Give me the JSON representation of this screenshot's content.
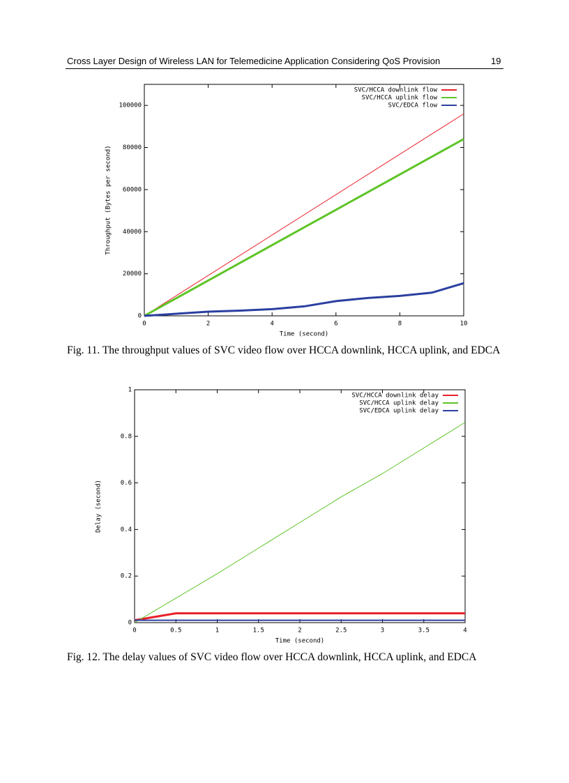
{
  "header": {
    "title": "Cross Layer Design of Wireless LAN for Telemedicine Application  Considering QoS Provision",
    "page": "19"
  },
  "chart_data": [
    {
      "type": "line",
      "xlabel": "Time (second)",
      "ylabel": "Throughput (Bytes per second)",
      "xlim": [
        0,
        10
      ],
      "ylim": [
        0,
        110000
      ],
      "xticks": [
        0,
        2,
        4,
        6,
        8,
        10
      ],
      "yticks": [
        0,
        20000,
        40000,
        60000,
        80000,
        100000
      ],
      "legend": "upper right",
      "x": [
        0,
        1,
        2,
        3,
        4,
        5,
        6,
        7,
        8,
        9,
        10
      ],
      "series": [
        {
          "name": "SVC/HCCA downlink flow",
          "color": "#e8202a",
          "values": [
            0,
            9600,
            19200,
            28800,
            38400,
            48000,
            57600,
            67200,
            76800,
            86400,
            96000
          ]
        },
        {
          "name": "SVC/HCCA uplink flow",
          "color": "#5ec426",
          "values": [
            0,
            8400,
            16800,
            25200,
            33600,
            42000,
            50400,
            58800,
            67200,
            75600,
            84000
          ]
        },
        {
          "name": "SVC/EDCA flow",
          "color": "#2b3fa0",
          "values": [
            0,
            1000,
            2000,
            2500,
            3200,
            4500,
            7000,
            8500,
            9500,
            11000,
            15500
          ]
        }
      ]
    },
    {
      "type": "line",
      "xlabel": "Time (second)",
      "ylabel": "Delay (second)",
      "xlim": [
        0,
        4
      ],
      "ylim": [
        0,
        1
      ],
      "xticks": [
        0,
        0.5,
        1,
        1.5,
        2,
        2.5,
        3,
        3.5,
        4
      ],
      "yticks": [
        0,
        0.2,
        0.4,
        0.6,
        0.8,
        1
      ],
      "legend": "upper right",
      "x": [
        0,
        0.5,
        1,
        1.5,
        2,
        2.5,
        3,
        3.5,
        4
      ],
      "series": [
        {
          "name": "SVC/HCCA downlink delay",
          "color": "#e8202a",
          "values": [
            0.01,
            0.04,
            0.04,
            0.04,
            0.04,
            0.04,
            0.04,
            0.04,
            0.04
          ]
        },
        {
          "name": "SVC/HCCA uplink delay",
          "color": "#5ec426",
          "values": [
            0,
            0.105,
            0.21,
            0.32,
            0.43,
            0.54,
            0.64,
            0.75,
            0.86
          ]
        },
        {
          "name": "SVC/EDCA uplink delay",
          "color": "#2b3fa0",
          "values": [
            0.01,
            0.01,
            0.01,
            0.01,
            0.01,
            0.01,
            0.01,
            0.01,
            0.01
          ]
        }
      ]
    }
  ],
  "captions": [
    "Fig. 11. The throughput values of SVC video flow over HCCA downlink, HCCA uplink, and EDCA",
    "Fig. 12. The delay values of SVC video flow over HCCA downlink, HCCA uplink, and EDCA"
  ]
}
